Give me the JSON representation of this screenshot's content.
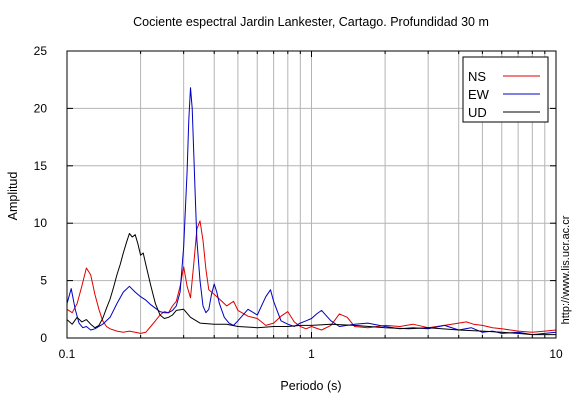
{
  "chart_data": {
    "type": "line",
    "title": "Cociente espectral Jardin Lankester, Cartago. Profundidad 30 m",
    "xlabel": "Periodo (s)",
    "ylabel": "Amplitud",
    "x_scale": "log",
    "xlim": [
      0.1,
      10
    ],
    "ylim": [
      0,
      25
    ],
    "x_ticks": [
      0.1,
      1,
      10
    ],
    "x_tick_labels": [
      "0.1",
      "1",
      "10"
    ],
    "y_ticks": [
      0,
      5,
      10,
      15,
      20,
      25
    ],
    "y_tick_labels": [
      "0",
      "5",
      "10",
      "15",
      "20",
      "25"
    ],
    "grid": true,
    "legend_position": "top-right",
    "side_note": "http://www.lis.ucr.ac.cr",
    "series": [
      {
        "name": "NS",
        "color": "#e00000",
        "x": [
          0.1,
          0.105,
          0.11,
          0.115,
          0.12,
          0.125,
          0.13,
          0.135,
          0.14,
          0.145,
          0.15,
          0.16,
          0.17,
          0.18,
          0.19,
          0.2,
          0.21,
          0.22,
          0.23,
          0.24,
          0.25,
          0.26,
          0.27,
          0.28,
          0.29,
          0.3,
          0.31,
          0.32,
          0.33,
          0.34,
          0.35,
          0.36,
          0.37,
          0.38,
          0.4,
          0.42,
          0.45,
          0.48,
          0.5,
          0.55,
          0.6,
          0.65,
          0.7,
          0.75,
          0.8,
          0.85,
          0.9,
          0.95,
          1.0,
          1.1,
          1.2,
          1.3,
          1.4,
          1.5,
          1.7,
          2.0,
          2.3,
          2.6,
          3.0,
          3.5,
          4.0,
          4.3,
          4.6,
          5.0,
          5.5,
          6.0,
          7.0,
          8.0,
          9.0,
          10.0
        ],
        "y": [
          2.5,
          2.2,
          3.0,
          4.5,
          6.1,
          5.5,
          3.8,
          2.5,
          1.5,
          1.0,
          0.8,
          0.6,
          0.5,
          0.6,
          0.5,
          0.4,
          0.5,
          1.0,
          1.5,
          2.0,
          2.3,
          2.2,
          2.8,
          3.2,
          4.5,
          6.2,
          4.5,
          3.5,
          6.5,
          9.5,
          10.2,
          8.5,
          6.0,
          4.2,
          3.8,
          3.4,
          2.8,
          3.2,
          2.4,
          1.9,
          1.7,
          1.1,
          1.3,
          1.9,
          2.3,
          1.4,
          1.0,
          0.8,
          1.0,
          0.7,
          1.1,
          2.1,
          1.8,
          1.0,
          0.9,
          1.1,
          1.0,
          1.2,
          0.9,
          1.1,
          1.3,
          1.4,
          1.2,
          1.1,
          0.9,
          0.8,
          0.6,
          0.5,
          0.6,
          0.7
        ]
      },
      {
        "name": "EW",
        "color": "#0000c0",
        "x": [
          0.1,
          0.104,
          0.108,
          0.112,
          0.116,
          0.12,
          0.125,
          0.13,
          0.14,
          0.15,
          0.16,
          0.17,
          0.18,
          0.19,
          0.2,
          0.21,
          0.22,
          0.23,
          0.24,
          0.25,
          0.26,
          0.27,
          0.28,
          0.29,
          0.3,
          0.31,
          0.315,
          0.32,
          0.325,
          0.33,
          0.335,
          0.34,
          0.35,
          0.36,
          0.37,
          0.38,
          0.39,
          0.4,
          0.41,
          0.42,
          0.44,
          0.46,
          0.48,
          0.5,
          0.55,
          0.6,
          0.65,
          0.68,
          0.7,
          0.75,
          0.8,
          0.85,
          0.9,
          0.95,
          1.0,
          1.05,
          1.1,
          1.2,
          1.3,
          1.5,
          1.7,
          2.0,
          2.3,
          2.6,
          3.0,
          3.5,
          4.0,
          4.5,
          5.0,
          5.5,
          6.0,
          7.0,
          8.0,
          9.0,
          10.0
        ],
        "y": [
          3.0,
          4.3,
          2.5,
          1.3,
          0.9,
          1.0,
          0.7,
          0.8,
          1.2,
          1.8,
          3.0,
          4.0,
          4.5,
          4.0,
          3.6,
          3.3,
          2.9,
          2.6,
          2.3,
          2.2,
          2.2,
          2.4,
          2.8,
          4.0,
          8.0,
          14.5,
          19.0,
          21.8,
          20.0,
          16.0,
          12.0,
          8.5,
          5.0,
          2.8,
          2.2,
          2.5,
          3.8,
          4.7,
          4.0,
          3.0,
          1.8,
          1.3,
          1.1,
          1.5,
          2.5,
          2.0,
          3.6,
          4.2,
          3.2,
          1.5,
          1.2,
          1.0,
          1.3,
          1.5,
          1.7,
          2.1,
          2.4,
          1.5,
          1.0,
          1.2,
          1.3,
          1.0,
          0.8,
          0.9,
          0.8,
          1.1,
          0.7,
          0.9,
          0.5,
          0.6,
          0.4,
          0.5,
          0.3,
          0.4,
          0.5
        ]
      },
      {
        "name": "UD",
        "color": "#000000",
        "x": [
          0.1,
          0.105,
          0.11,
          0.115,
          0.12,
          0.125,
          0.13,
          0.135,
          0.14,
          0.145,
          0.15,
          0.155,
          0.16,
          0.165,
          0.17,
          0.175,
          0.18,
          0.185,
          0.19,
          0.195,
          0.2,
          0.205,
          0.21,
          0.22,
          0.23,
          0.24,
          0.25,
          0.26,
          0.27,
          0.28,
          0.3,
          0.32,
          0.35,
          0.4,
          0.45,
          0.5,
          0.6,
          0.7,
          0.8,
          0.9,
          1.0,
          1.2,
          1.5,
          2.0,
          2.5,
          3.0,
          4.0,
          5.0,
          6.0,
          7.0,
          8.0,
          9.0,
          10.0
        ],
        "y": [
          1.6,
          1.2,
          1.8,
          1.4,
          1.6,
          1.2,
          0.9,
          1.1,
          1.7,
          2.6,
          3.4,
          4.4,
          5.5,
          6.4,
          7.4,
          8.3,
          9.1,
          8.8,
          9.0,
          8.2,
          7.2,
          7.4,
          6.4,
          4.6,
          3.0,
          2.0,
          1.7,
          1.8,
          2.0,
          2.4,
          2.5,
          1.8,
          1.3,
          1.2,
          1.2,
          1.0,
          0.9,
          1.0,
          1.0,
          1.1,
          1.1,
          1.2,
          1.1,
          0.9,
          0.8,
          0.9,
          0.7,
          0.6,
          0.5,
          0.4,
          0.3,
          0.3,
          0.3
        ]
      }
    ]
  }
}
